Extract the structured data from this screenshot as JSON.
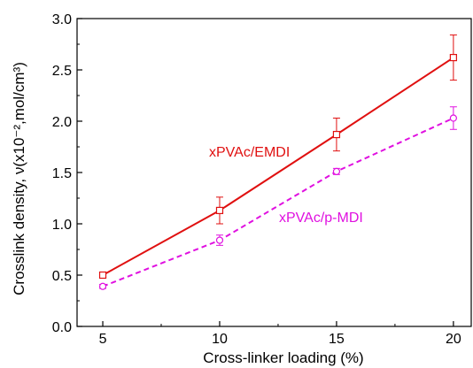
{
  "chart_data": {
    "type": "line",
    "xlabel": "Cross-linker loading (%)",
    "ylabel": "Crosslink density, ν(x10⁻²,mol/cm³)",
    "xlim": [
      3.9,
      20.8
    ],
    "ylim": [
      0.0,
      3.0
    ],
    "x_ticks": [
      5,
      10,
      15,
      20
    ],
    "y_ticks": [
      0.0,
      0.5,
      1.0,
      1.5,
      2.0,
      2.5,
      3.0
    ],
    "x_tick_labels": [
      "5",
      "10",
      "15",
      "20"
    ],
    "y_tick_labels": [
      "0.0",
      "0.5",
      "1.0",
      "1.5",
      "2.0",
      "2.5",
      "3.0"
    ],
    "grid": false,
    "series": [
      {
        "name": "xPVAc/EMDI",
        "color": "#e01010",
        "line_style": "solid",
        "marker": "square",
        "x": [
          5,
          10,
          15,
          20
        ],
        "y": [
          0.5,
          1.13,
          1.87,
          2.62
        ],
        "error": [
          0.02,
          0.13,
          0.16,
          0.22
        ]
      },
      {
        "name": "xPVAc/p-MDI",
        "color": "#e010e0",
        "line_style": "dashed",
        "marker": "circle",
        "x": [
          5,
          10,
          15,
          20
        ],
        "y": [
          0.39,
          0.84,
          1.51,
          2.03
        ],
        "error": [
          0.02,
          0.05,
          0.03,
          0.11
        ]
      }
    ]
  }
}
